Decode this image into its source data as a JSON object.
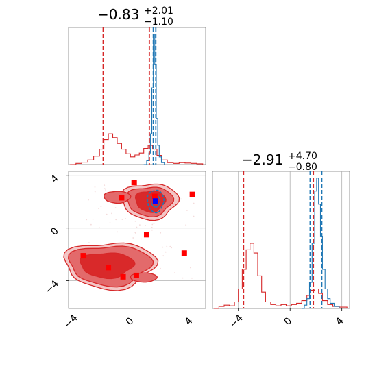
{
  "colors": {
    "red": "#d62728",
    "blue": "#1f77b4",
    "fill_red": "#e36a6b",
    "fill_red_dark": "#d9292a",
    "marker_blue": "#0000ff",
    "marker_red": "#ff0000"
  },
  "chart_data": [
    {
      "type": "histogram",
      "panel": "top-left",
      "title": {
        "value": "−0.83",
        "upper": "+2.01",
        "lower": "−1.10"
      },
      "xlim": [
        -4.3,
        5.0
      ],
      "grid": true,
      "x_ticks": [
        -4,
        0,
        4
      ],
      "vlines": {
        "red": [
          -1.95,
          1.18
        ],
        "blue": [
          1.45,
          1.62
        ]
      },
      "series": [
        {
          "color": "red",
          "values": [
            {
              "x": -4.2,
              "y": 0.0
            },
            {
              "x": -3.8,
              "y": 0.3
            },
            {
              "x": -3.4,
              "y": 0.6
            },
            {
              "x": -3.0,
              "y": 1.2
            },
            {
              "x": -2.6,
              "y": 2.2
            },
            {
              "x": -2.2,
              "y": 4.0
            },
            {
              "x": -1.9,
              "y": 6.5
            },
            {
              "x": -1.6,
              "y": 8.0
            },
            {
              "x": -1.3,
              "y": 7.0
            },
            {
              "x": -1.0,
              "y": 5.5
            },
            {
              "x": -0.7,
              "y": 4.0
            },
            {
              "x": -0.4,
              "y": 2.8
            },
            {
              "x": -0.1,
              "y": 2.0
            },
            {
              "x": 0.2,
              "y": 2.5
            },
            {
              "x": 0.5,
              "y": 3.0
            },
            {
              "x": 0.8,
              "y": 4.2
            },
            {
              "x": 1.1,
              "y": 5.0
            },
            {
              "x": 1.4,
              "y": 4.0
            },
            {
              "x": 1.7,
              "y": 2.4
            },
            {
              "x": 2.0,
              "y": 1.2
            },
            {
              "x": 2.4,
              "y": 0.5
            },
            {
              "x": 2.8,
              "y": 0.3
            },
            {
              "x": 3.2,
              "y": 0.5
            },
            {
              "x": 3.6,
              "y": 0.4
            },
            {
              "x": 4.0,
              "y": 0.3
            },
            {
              "x": 4.4,
              "y": 0.2
            },
            {
              "x": 4.8,
              "y": 0.0
            }
          ]
        },
        {
          "color": "blue",
          "values": [
            {
              "x": 0.8,
              "y": 0.0
            },
            {
              "x": 1.0,
              "y": 1.0
            },
            {
              "x": 1.15,
              "y": 3.0
            },
            {
              "x": 1.25,
              "y": 8.0
            },
            {
              "x": 1.35,
              "y": 20.0
            },
            {
              "x": 1.45,
              "y": 34.0
            },
            {
              "x": 1.55,
              "y": 26.0
            },
            {
              "x": 1.65,
              "y": 12.0
            },
            {
              "x": 1.75,
              "y": 5.0
            },
            {
              "x": 1.85,
              "y": 2.0
            },
            {
              "x": 2.0,
              "y": 0.5
            },
            {
              "x": 2.2,
              "y": 0.0
            }
          ]
        }
      ]
    },
    {
      "type": "scatter",
      "panel": "bottom-left",
      "xlim": [
        -4.3,
        5.0
      ],
      "ylim": [
        -6.1,
        4.3
      ],
      "grid": true,
      "x_ticks": [
        -4,
        0,
        4
      ],
      "y_ticks": [
        4,
        0,
        -4
      ],
      "red_markers": [
        {
          "x": 0.15,
          "y": 3.45
        },
        {
          "x": -0.7,
          "y": 2.3
        },
        {
          "x": 1.55,
          "y": 2.4
        },
        {
          "x": 4.1,
          "y": 2.55
        },
        {
          "x": 1.0,
          "y": -0.5
        },
        {
          "x": -3.3,
          "y": -2.1
        },
        {
          "x": 3.55,
          "y": -1.9
        },
        {
          "x": -1.6,
          "y": -3.0
        },
        {
          "x": -0.6,
          "y": -3.7
        },
        {
          "x": 0.3,
          "y": -3.6
        }
      ],
      "blue_markers": [
        {
          "x": 1.6,
          "y": 2.05
        }
      ]
    },
    {
      "type": "histogram",
      "panel": "bottom-right",
      "title": {
        "value": "−2.91",
        "upper": "+4.70",
        "lower": "−0.80"
      },
      "xlim": [
        -6.0,
        4.6
      ],
      "grid": true,
      "x_ticks": [
        -4,
        0,
        4
      ],
      "vlines": {
        "red": [
          -3.6,
          1.8
        ],
        "blue": [
          1.55,
          2.45
        ]
      },
      "series": [
        {
          "color": "red",
          "values": [
            {
              "x": -5.9,
              "y": 0.0
            },
            {
              "x": -5.5,
              "y": 0.3
            },
            {
              "x": -5.1,
              "y": 0.5
            },
            {
              "x": -4.7,
              "y": 0.4
            },
            {
              "x": -4.3,
              "y": 1.0
            },
            {
              "x": -4.0,
              "y": 3.0
            },
            {
              "x": -3.7,
              "y": 6.0
            },
            {
              "x": -3.4,
              "y": 9.0
            },
            {
              "x": -3.1,
              "y": 10.0
            },
            {
              "x": -2.8,
              "y": 8.5
            },
            {
              "x": -2.5,
              "y": 5.0
            },
            {
              "x": -2.2,
              "y": 2.5
            },
            {
              "x": -1.9,
              "y": 1.0
            },
            {
              "x": -1.5,
              "y": 0.6
            },
            {
              "x": -1.1,
              "y": 0.4
            },
            {
              "x": -0.7,
              "y": 0.6
            },
            {
              "x": -0.3,
              "y": 0.4
            },
            {
              "x": 0.1,
              "y": 0.6
            },
            {
              "x": 0.5,
              "y": 0.8
            },
            {
              "x": 0.9,
              "y": 1.2
            },
            {
              "x": 1.3,
              "y": 2.0
            },
            {
              "x": 1.6,
              "y": 2.8
            },
            {
              "x": 1.9,
              "y": 3.0
            },
            {
              "x": 2.2,
              "y": 2.3
            },
            {
              "x": 2.5,
              "y": 1.2
            },
            {
              "x": 2.9,
              "y": 0.6
            },
            {
              "x": 3.3,
              "y": 0.3
            },
            {
              "x": 3.8,
              "y": 0.2
            },
            {
              "x": 4.4,
              "y": 0.0
            }
          ]
        },
        {
          "color": "blue",
          "values": [
            {
              "x": 0.9,
              "y": 0.0
            },
            {
              "x": 1.1,
              "y": 0.5
            },
            {
              "x": 1.3,
              "y": 1.5
            },
            {
              "x": 1.5,
              "y": 4.0
            },
            {
              "x": 1.7,
              "y": 10.0
            },
            {
              "x": 1.9,
              "y": 18.0
            },
            {
              "x": 2.05,
              "y": 20.0
            },
            {
              "x": 2.2,
              "y": 16.0
            },
            {
              "x": 2.35,
              "y": 11.0
            },
            {
              "x": 2.5,
              "y": 6.0
            },
            {
              "x": 2.7,
              "y": 3.0
            },
            {
              "x": 2.9,
              "y": 1.5
            },
            {
              "x": 3.1,
              "y": 0.8
            },
            {
              "x": 3.4,
              "y": 0.3
            },
            {
              "x": 3.8,
              "y": 0.0
            }
          ]
        }
      ]
    }
  ]
}
